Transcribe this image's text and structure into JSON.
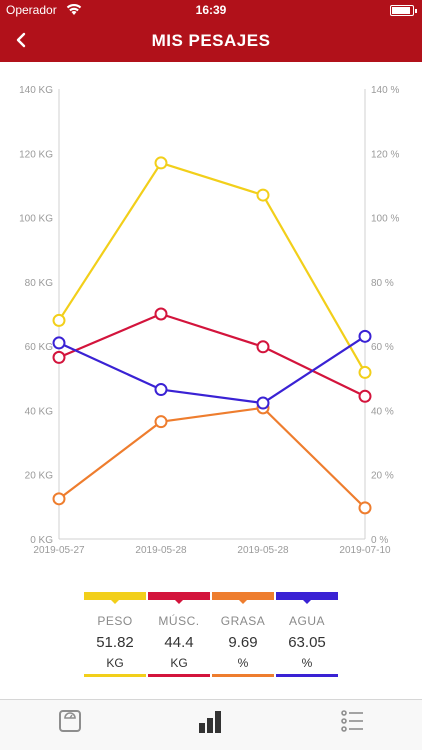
{
  "status_bar": {
    "carrier": "Operador",
    "time": "16:39",
    "battery_level": 0.9
  },
  "nav": {
    "title": "MIS PESAJES",
    "back_icon": "chevron-left-icon"
  },
  "chart_data": {
    "type": "line",
    "x": [
      "2019-05-27",
      "2019-05-28",
      "2019-05-28",
      "2019-07-10"
    ],
    "y_left": {
      "ylim": [
        0,
        140
      ],
      "ticks": [
        "0 KG",
        "20 KG",
        "40 KG",
        "60 KG",
        "80 KG",
        "100 KG",
        "120 KG",
        "140 KG"
      ]
    },
    "y_right": {
      "ylim": [
        0,
        140
      ],
      "ticks": [
        "0 %",
        "20 %",
        "40 %",
        "60 %",
        "80 %",
        "100 %",
        "120 %",
        "140 %"
      ]
    },
    "grid": false,
    "series": [
      {
        "name": "PESO",
        "color": "#f2cf1a",
        "values": [
          68,
          117,
          107,
          51.82
        ]
      },
      {
        "name": "MÚSC.",
        "color": "#d3143c",
        "values": [
          56.5,
          70,
          59.8,
          44.4
        ]
      },
      {
        "name": "GRASA",
        "color": "#ee7d2e",
        "values": [
          12.5,
          36.5,
          40.8,
          9.69
        ]
      },
      {
        "name": "AGUA",
        "color": "#3a22d4",
        "values": [
          61,
          46.5,
          42.3,
          63.05
        ]
      }
    ]
  },
  "legend": [
    {
      "name": "PESO",
      "value": "51.82",
      "unit": "KG",
      "color": "#f2cf1a"
    },
    {
      "name": "MÚSC.",
      "value": "44.4",
      "unit": "KG",
      "color": "#d3143c"
    },
    {
      "name": "GRASA",
      "value": "9.69",
      "unit": "%",
      "color": "#ee7d2e"
    },
    {
      "name": "AGUA",
      "value": "63.05",
      "unit": "%",
      "color": "#3a22d4"
    }
  ],
  "tab_bar": [
    {
      "icon": "scale-icon",
      "active": false
    },
    {
      "icon": "bar-chart-icon",
      "active": true
    },
    {
      "icon": "list-icon",
      "active": false
    }
  ]
}
